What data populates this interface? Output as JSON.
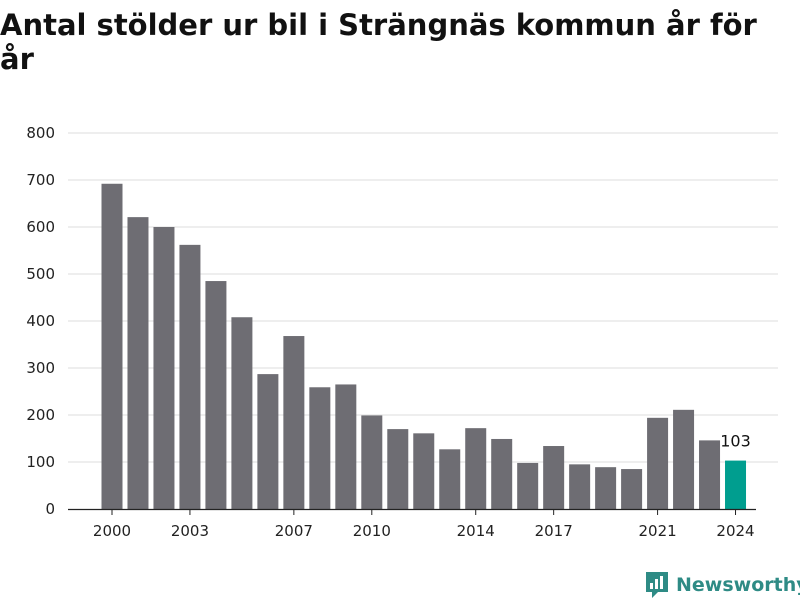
{
  "title": "Antal stölder ur bil i Strängnäs kommun år för år",
  "brand": {
    "name": "Newsworthy",
    "icon": "newsworthy-logo-icon",
    "color": "#2e8b85"
  },
  "chart_data": {
    "type": "bar",
    "categories": [
      "2000",
      "2001",
      "2002",
      "2003",
      "2004",
      "2005",
      "2006",
      "2007",
      "2008",
      "2009",
      "2010",
      "2011",
      "2012",
      "2013",
      "2014",
      "2015",
      "2016",
      "2017",
      "2018",
      "2019",
      "2020",
      "2021",
      "2022",
      "2023",
      "2024"
    ],
    "values": [
      692,
      621,
      600,
      562,
      485,
      408,
      287,
      368,
      259,
      265,
      199,
      170,
      161,
      127,
      172,
      149,
      98,
      134,
      95,
      89,
      85,
      194,
      211,
      146,
      103
    ],
    "x_tick_labels": [
      "2000",
      "2003",
      "2007",
      "2010",
      "2014",
      "2017",
      "2021",
      "2024"
    ],
    "y_ticks": [
      0,
      100,
      200,
      300,
      400,
      500,
      600,
      700,
      800
    ],
    "ylim": [
      0,
      800
    ],
    "xlabel": "",
    "ylabel": "",
    "grid": true,
    "highlight": {
      "category": "2024",
      "label": "103"
    },
    "colors": {
      "bar": "#6e6d73",
      "highlight": "#009e8f",
      "grid": "#dddddd",
      "axis": "#222222"
    }
  }
}
